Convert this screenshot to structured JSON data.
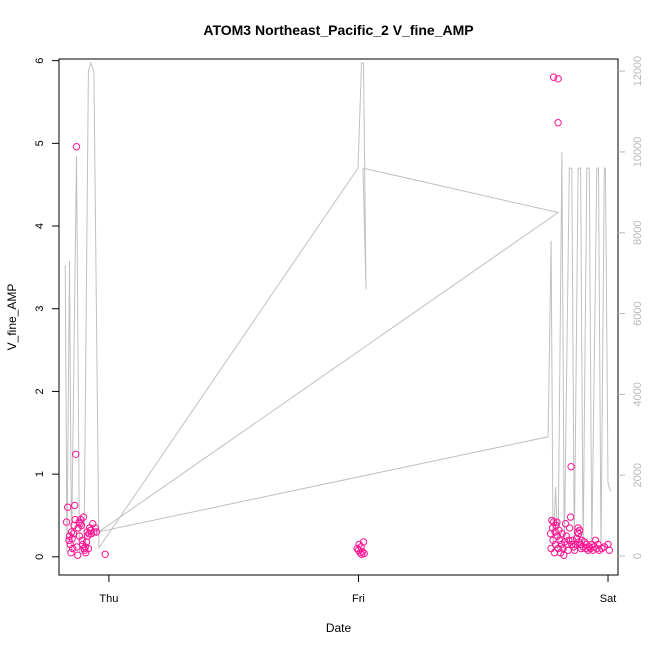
{
  "chart_data": {
    "type": "scatter",
    "title": "ATOM3 Northeast_Pacific_2 V_fine_AMP",
    "xlabel": "Date",
    "ylabel": "V_fine_AMP",
    "x_ticks": [
      "Thu",
      "Fri",
      "Sat"
    ],
    "x_tick_values": [
      0,
      1,
      2
    ],
    "xlim": [
      -0.2,
      2.04
    ],
    "ylim": [
      -0.22,
      6.02
    ],
    "y_ticks": [
      0,
      1,
      2,
      3,
      4,
      5,
      6
    ],
    "y2lim": [
      -470,
      12300
    ],
    "y2_ticks": [
      0,
      2000,
      4000,
      6000,
      8000,
      10000,
      12000
    ],
    "grid": false,
    "legend": "none",
    "colors": {
      "points": "#ff1493",
      "secondary_line": "#c0c0c0",
      "axis": "#000000",
      "secondary_axis": "#b8b8b8"
    },
    "series": [
      {
        "axis": "left",
        "style": "points",
        "points": [
          [
            -0.17,
            0.42
          ],
          [
            -0.165,
            0.6
          ],
          [
            -0.16,
            0.2
          ],
          [
            -0.158,
            0.25
          ],
          [
            -0.155,
            0.15
          ],
          [
            -0.152,
            0.05
          ],
          [
            -0.15,
            0.3
          ],
          [
            -0.147,
            0.22
          ],
          [
            -0.145,
            0.1
          ],
          [
            -0.142,
            0.28
          ],
          [
            -0.14,
            0.38
          ],
          [
            -0.137,
            0.62
          ],
          [
            -0.135,
            0.45
          ],
          [
            -0.133,
            1.24
          ],
          [
            -0.13,
            4.96
          ],
          [
            -0.128,
            0.12
          ],
          [
            -0.125,
            0.02
          ],
          [
            -0.123,
            0.35
          ],
          [
            -0.12,
            0.42
          ],
          [
            -0.118,
            0.25
          ],
          [
            -0.115,
            0.4
          ],
          [
            -0.113,
            0.45
          ],
          [
            -0.11,
            0.38
          ],
          [
            -0.107,
            0.2
          ],
          [
            -0.105,
            0.15
          ],
          [
            -0.102,
            0.48
          ],
          [
            -0.1,
            0.1
          ],
          [
            -0.097,
            0.08
          ],
          [
            -0.095,
            0.12
          ],
          [
            -0.093,
            0.05
          ],
          [
            -0.09,
            0.18
          ],
          [
            -0.087,
            0.3
          ],
          [
            -0.085,
            0.25
          ],
          [
            -0.082,
            0.1
          ],
          [
            -0.08,
            0.28
          ],
          [
            -0.077,
            0.35
          ],
          [
            -0.073,
            0.32
          ],
          [
            -0.07,
            0.28
          ],
          [
            -0.065,
            0.4
          ],
          [
            -0.06,
            0.3
          ],
          [
            -0.055,
            0.35
          ],
          [
            -0.05,
            0.3
          ],
          [
            -0.015,
            0.03
          ],
          [
            0.995,
            0.1
          ],
          [
            1.0,
            0.08
          ],
          [
            1.003,
            0.15
          ],
          [
            1.006,
            0.05
          ],
          [
            1.01,
            0.12
          ],
          [
            1.013,
            0.03
          ],
          [
            1.016,
            0.06
          ],
          [
            1.02,
            0.18
          ],
          [
            1.023,
            0.04
          ],
          [
            1.782,
            5.8
          ],
          [
            1.8,
            5.78
          ],
          [
            1.8,
            5.25
          ],
          [
            1.77,
            0.28
          ],
          [
            1.772,
            0.1
          ],
          [
            1.775,
            0.44
          ],
          [
            1.778,
            0.35
          ],
          [
            1.78,
            0.2
          ],
          [
            1.782,
            0.42
          ],
          [
            1.785,
            0.05
          ],
          [
            1.788,
            0.3
          ],
          [
            1.79,
            0.15
          ],
          [
            1.792,
            0.38
          ],
          [
            1.795,
            0.42
          ],
          [
            1.797,
            0.25
          ],
          [
            1.8,
            0.1
          ],
          [
            1.803,
            0.32
          ],
          [
            1.806,
            0.2
          ],
          [
            1.81,
            0.05
          ],
          [
            1.813,
            0.15
          ],
          [
            1.816,
            0.28
          ],
          [
            1.82,
            0.1
          ],
          [
            1.823,
            0.02
          ],
          [
            1.826,
            0.18
          ],
          [
            1.83,
            0.4
          ],
          [
            1.833,
            0.25
          ],
          [
            1.836,
            0.15
          ],
          [
            1.84,
            0.08
          ],
          [
            1.843,
            0.2
          ],
          [
            1.846,
            0.35
          ],
          [
            1.85,
            0.48
          ],
          [
            1.852,
            1.09
          ],
          [
            1.855,
            0.15
          ],
          [
            1.858,
            0.2
          ],
          [
            1.862,
            0.12
          ],
          [
            1.866,
            0.08
          ],
          [
            1.87,
            0.15
          ],
          [
            1.874,
            0.22
          ],
          [
            1.878,
            0.3
          ],
          [
            1.88,
            0.35
          ],
          [
            1.882,
            0.28
          ],
          [
            1.884,
            0.18
          ],
          [
            1.886,
            0.32
          ],
          [
            1.888,
            0.15
          ],
          [
            1.892,
            0.1
          ],
          [
            1.895,
            0.2
          ],
          [
            1.9,
            0.12
          ],
          [
            1.905,
            0.18
          ],
          [
            1.91,
            0.1
          ],
          [
            1.915,
            0.15
          ],
          [
            1.92,
            0.08
          ],
          [
            1.925,
            0.12
          ],
          [
            1.93,
            0.1
          ],
          [
            1.935,
            0.15
          ],
          [
            1.94,
            0.08
          ],
          [
            1.945,
            0.12
          ],
          [
            1.95,
            0.2
          ],
          [
            1.955,
            0.1
          ],
          [
            1.96,
            0.15
          ],
          [
            1.965,
            0.08
          ],
          [
            1.975,
            0.1
          ],
          [
            1.985,
            0.12
          ],
          [
            2.0,
            0.15
          ],
          [
            2.005,
            0.08
          ]
        ]
      },
      {
        "axis": "right",
        "style": "line",
        "points": [
          [
            -0.175,
            7200
          ],
          [
            -0.168,
            100
          ],
          [
            -0.158,
            7300
          ],
          [
            -0.15,
            100
          ],
          [
            -0.13,
            9900
          ],
          [
            -0.118,
            100
          ],
          [
            -0.1,
            100
          ],
          [
            -0.082,
            12000
          ],
          [
            -0.073,
            12200
          ],
          [
            -0.06,
            12000
          ],
          [
            -0.04,
            200
          ],
          [
            0.998,
            9600
          ],
          [
            1.012,
            12200
          ],
          [
            1.02,
            12200
          ],
          [
            1.03,
            6600
          ],
          [
            1.018,
            9600
          ],
          [
            1.8,
            8500
          ],
          [
            -0.04,
            600
          ],
          [
            1.76,
            2950
          ],
          [
            1.772,
            7800
          ],
          [
            1.78,
            100
          ],
          [
            1.79,
            1700
          ],
          [
            1.8,
            100
          ],
          [
            1.815,
            10000
          ],
          [
            1.825,
            100
          ],
          [
            1.845,
            9600
          ],
          [
            1.855,
            9600
          ],
          [
            1.865,
            100
          ],
          [
            1.88,
            9600
          ],
          [
            1.89,
            9600
          ],
          [
            1.9,
            100
          ],
          [
            1.915,
            9600
          ],
          [
            1.925,
            9600
          ],
          [
            1.935,
            100
          ],
          [
            1.955,
            9600
          ],
          [
            1.962,
            9600
          ],
          [
            1.972,
            100
          ],
          [
            1.985,
            9600
          ],
          [
            1.99,
            9600
          ],
          [
            2.0,
            1800
          ],
          [
            2.01,
            1600
          ]
        ]
      }
    ]
  }
}
